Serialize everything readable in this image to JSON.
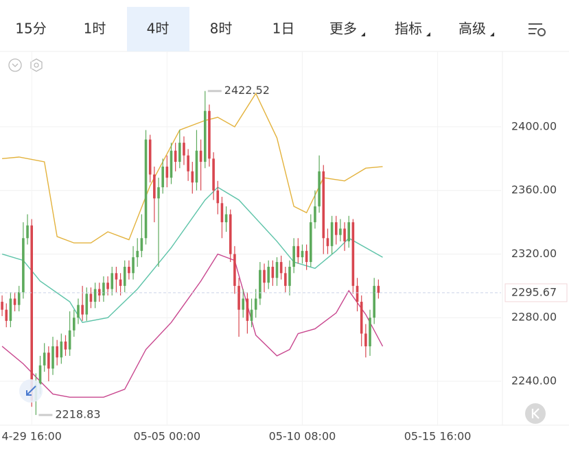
{
  "tabs": [
    "15分",
    "1时",
    "4时",
    "8时",
    "1日",
    "更多",
    "指标",
    "高级"
  ],
  "selected_tab": 2,
  "chart_data": {
    "type": "candlestick",
    "open": [
      2290,
      2285,
      2278,
      2292,
      2288,
      2296,
      2330,
      2338,
      2228,
      2238,
      2250,
      2258,
      2248,
      2262,
      2255,
      2265,
      2260,
      2272,
      2280,
      2288,
      2282,
      2295,
      2290,
      2298,
      2294,
      2302,
      2298,
      2308,
      2304,
      2300,
      2312,
      2308,
      2318,
      2322,
      2330,
      2392,
      2370,
      2355,
      2362,
      2375,
      2368,
      2385,
      2378,
      2390,
      2382,
      2372,
      2365,
      2385,
      2378,
      2410,
      2380,
      2360,
      2352,
      2340,
      2345,
      2320,
      2300,
      2285,
      2292,
      2278,
      2285,
      2292,
      2310,
      2302,
      2312,
      2305,
      2315,
      2308,
      2300,
      2312,
      2325,
      2318,
      2322,
      2315,
      2340,
      2350,
      2372,
      2330,
      2325,
      2340,
      2332,
      2336,
      2328,
      2340,
      2300,
      2290,
      2270,
      2262,
      2280,
      2300
    ],
    "high": [
      2294,
      2289,
      2296,
      2296,
      2300,
      2340,
      2345,
      2342,
      2245,
      2256,
      2264,
      2262,
      2268,
      2266,
      2270,
      2269,
      2284,
      2285,
      2292,
      2300,
      2299,
      2299,
      2302,
      2302,
      2306,
      2306,
      2312,
      2312,
      2308,
      2316,
      2316,
      2325,
      2330,
      2345,
      2398,
      2395,
      2375,
      2368,
      2380,
      2382,
      2390,
      2390,
      2398,
      2394,
      2386,
      2378,
      2398,
      2392,
      2422.52,
      2414,
      2384,
      2366,
      2356,
      2350,
      2348,
      2325,
      2305,
      2298,
      2296,
      2292,
      2298,
      2315,
      2314,
      2316,
      2316,
      2318,
      2319,
      2312,
      2316,
      2330,
      2330,
      2326,
      2326,
      2345,
      2360,
      2382,
      2376,
      2336,
      2344,
      2344,
      2342,
      2340,
      2344,
      2342,
      2305,
      2294,
      2276,
      2285,
      2305,
      2304
    ],
    "low": [
      2281,
      2274,
      2274,
      2284,
      2284,
      2292,
      2326,
      2224,
      2218.83,
      2232,
      2246,
      2240,
      2244,
      2250,
      2251,
      2256,
      2256,
      2268,
      2276,
      2278,
      2278,
      2286,
      2286,
      2290,
      2290,
      2294,
      2294,
      2296,
      2294,
      2296,
      2304,
      2304,
      2312,
      2318,
      2326,
      2365,
      2340,
      2312,
      2358,
      2362,
      2364,
      2372,
      2374,
      2376,
      2366,
      2358,
      2360,
      2360,
      2374,
      2375,
      2354,
      2345,
      2330,
      2334,
      2315,
      2295,
      2268,
      2280,
      2270,
      2274,
      2280,
      2288,
      2296,
      2298,
      2300,
      2300,
      2304,
      2296,
      2294,
      2308,
      2314,
      2314,
      2310,
      2312,
      2336,
      2346,
      2320,
      2320,
      2320,
      2326,
      2328,
      2322,
      2324,
      2295,
      2284,
      2262,
      2255,
      2256,
      2276,
      2292
    ],
    "close": [
      2285,
      2278,
      2292,
      2288,
      2296,
      2330,
      2338,
      2228,
      2238,
      2250,
      2258,
      2248,
      2262,
      2255,
      2265,
      2260,
      2272,
      2280,
      2288,
      2282,
      2295,
      2290,
      2298,
      2294,
      2302,
      2298,
      2308,
      2304,
      2300,
      2312,
      2308,
      2318,
      2322,
      2330,
      2392,
      2370,
      2355,
      2362,
      2375,
      2368,
      2385,
      2378,
      2390,
      2382,
      2372,
      2365,
      2385,
      2378,
      2410,
      2380,
      2360,
      2352,
      2340,
      2345,
      2320,
      2300,
      2285,
      2292,
      2278,
      2285,
      2292,
      2310,
      2302,
      2312,
      2305,
      2315,
      2308,
      2300,
      2312,
      2325,
      2318,
      2322,
      2315,
      2340,
      2350,
      2372,
      2330,
      2325,
      2340,
      2332,
      2336,
      2328,
      2340,
      2300,
      2290,
      2270,
      2262,
      2280,
      2300,
      2295.67
    ],
    "up_color": "#5daa5c",
    "down_color": "#d8464f",
    "series": [
      {
        "color": "#e3b23c",
        "x": [
          0,
          4,
          10,
          13,
          17,
          21,
          25,
          30,
          35,
          42,
          48,
          51,
          55,
          60,
          65,
          69,
          72,
          76,
          81,
          86,
          90
        ],
        "values": [
          2380,
          2381,
          2378,
          2331,
          2327,
          2327,
          2334,
          2329,
          2363,
          2398,
          2404,
          2406,
          2400,
          2421,
          2393,
          2350,
          2346,
          2368,
          2366,
          2374,
          2375
        ]
      },
      {
        "color": "#5cc3a8",
        "x": [
          0,
          5,
          9,
          16,
          19,
          25,
          32,
          40,
          48,
          51,
          56,
          65,
          69,
          74,
          79,
          82,
          90
        ],
        "values": [
          2320,
          2316,
          2303,
          2290,
          2277,
          2280,
          2298,
          2324,
          2354,
          2362,
          2354,
          2328,
          2315,
          2311,
          2322,
          2330,
          2318
        ]
      },
      {
        "color": "#c8468e",
        "x": [
          0,
          5,
          9,
          12,
          16,
          24,
          29,
          34,
          40,
          47,
          51,
          55,
          60,
          65,
          68,
          70,
          74,
          79,
          82,
          86,
          90
        ],
        "values": [
          2262,
          2251,
          2240,
          2232,
          2230,
          2230,
          2235,
          2260,
          2277,
          2303,
          2320,
          2316,
          2269,
          2256,
          2260,
          2270,
          2273,
          2283,
          2297,
          2282,
          2262
        ]
      }
    ],
    "xlim": [
      -0.5,
      118
    ],
    "xticks": [
      {
        "value": 7,
        "label": "4-29 16:00"
      },
      {
        "value": 39,
        "label": "05-05 00:00"
      },
      {
        "value": 71,
        "label": "05-10 08:00"
      },
      {
        "value": 103,
        "label": "05-15 16:00"
      }
    ],
    "ylim": [
      2212.4,
      2447.4
    ],
    "yticks": [
      {
        "value": 2240,
        "label": "2240.00"
      },
      {
        "value": 2280,
        "label": "2280.00"
      },
      {
        "value": 2320,
        "label": "2320.00"
      },
      {
        "value": 2360,
        "label": "2360.00"
      },
      {
        "value": 2400,
        "label": "2400.00"
      }
    ],
    "grid": true
  }
}
